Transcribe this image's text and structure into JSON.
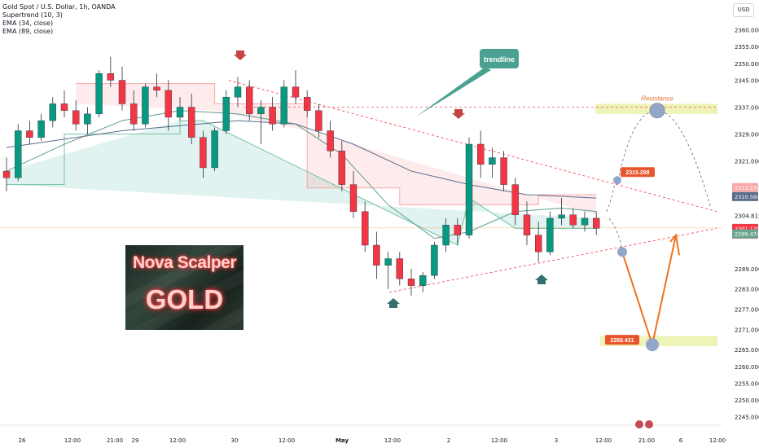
{
  "legend": {
    "symbol_line": "Gold Spot / U.S. Dollar, 1h, OANDA",
    "supertrend": "Supertrend (10, 3)",
    "ema34": "EMA (34, close)",
    "ema89": "EMA (89, close)"
  },
  "currency_button": "USD",
  "logo": {
    "line1": "Nova Scalper",
    "line2": "GOLD"
  },
  "colors": {
    "bull": "#089981",
    "bear": "#f23645",
    "annotation_teal": "#4aa191",
    "projection_orange": "#f0701a",
    "resistance_band": "#eef3b6",
    "marker_circle": "#93a5c8"
  },
  "chart_data": {
    "type": "candlestick",
    "symbol": "Gold Spot / U.S. Dollar",
    "timeframe": "1h",
    "source": "OANDA",
    "ylim": [
      2243,
      2364
    ],
    "y_ticks": [
      2360.0,
      2355.0,
      2350.0,
      2345.0,
      2337.0,
      2329.0,
      2321.0,
      2313.235,
      2304.815,
      2289.0,
      2283.0,
      2277.0,
      2271.0,
      2265.0,
      2260.0,
      2255.0,
      2250.0,
      2245.0
    ],
    "y_tick_labels": [
      "2360.000",
      "2355.000",
      "2350.000",
      "2345.000",
      "2337.000",
      "2329.000",
      "2321.000",
      "2313.235",
      "2304.815",
      "2289.000",
      "2283.000",
      "2277.000",
      "2271.000",
      "2265.000",
      "2260.000",
      "2255.000",
      "2250.000",
      "2245.000"
    ],
    "x_ticks": [
      "26",
      "12:00",
      "21:00",
      "29",
      "12:00",
      "30",
      "12:00",
      "May",
      "12:00",
      "2",
      "12:00",
      "3",
      "12:00",
      "21:00",
      "6",
      "12:00"
    ],
    "price_tags": [
      {
        "label": "2313.235",
        "value": 2313.235,
        "color": "#f7a9a9",
        "text": "#ffffff"
      },
      {
        "label": "2310.560",
        "value": 2310.56,
        "color": "#5b6d8c",
        "text": "#ffffff"
      },
      {
        "label": "2301.120",
        "sub": "25:43",
        "value": 2301.12,
        "color": "#f23645",
        "text": "#ffffff"
      },
      {
        "label": "2299.474",
        "value": 2299.474,
        "color": "#6ba58f",
        "text": "#ffffff"
      }
    ],
    "annotations": [
      {
        "label": "trendline",
        "type": "callout"
      },
      {
        "label": "Resistance",
        "type": "text",
        "value": 2336.0
      },
      {
        "label": "2315.298",
        "type": "price-label",
        "value": 2315.298
      },
      {
        "label": "2266.431",
        "type": "price-label",
        "value": 2266.431
      }
    ],
    "candles": [
      [
        2318.0,
        2322.0,
        2312.0,
        2316.0
      ],
      [
        2316.0,
        2332.0,
        2315.0,
        2330.0
      ],
      [
        2330.0,
        2333.0,
        2326.0,
        2328.0
      ],
      [
        2328.0,
        2335.0,
        2327.0,
        2333.0
      ],
      [
        2333.0,
        2340.0,
        2331.0,
        2338.0
      ],
      [
        2338.0,
        2342.0,
        2334.0,
        2336.0
      ],
      [
        2336.0,
        2339.0,
        2330.0,
        2332.0
      ],
      [
        2332.0,
        2337.0,
        2329.0,
        2335.0
      ],
      [
        2335.0,
        2348.0,
        2334.0,
        2347.0
      ],
      [
        2347.0,
        2352.0,
        2343.0,
        2345.0
      ],
      [
        2345.0,
        2349.0,
        2336.0,
        2338.0
      ],
      [
        2338.0,
        2342.0,
        2330.0,
        2332.0
      ],
      [
        2332.0,
        2344.0,
        2331.0,
        2343.0
      ],
      [
        2343.0,
        2347.0,
        2340.0,
        2342.0
      ],
      [
        2342.0,
        2345.0,
        2330.0,
        2334.0
      ],
      [
        2334.0,
        2340.0,
        2333.0,
        2337.0
      ],
      [
        2337.0,
        2341.0,
        2326.0,
        2328.0
      ],
      [
        2328.0,
        2330.0,
        2316.0,
        2319.0
      ],
      [
        2319.0,
        2331.0,
        2318.0,
        2330.0
      ],
      [
        2330.0,
        2342.0,
        2329.0,
        2340.0
      ],
      [
        2340.0,
        2346.0,
        2337.0,
        2343.0
      ],
      [
        2343.0,
        2345.0,
        2333.0,
        2335.0
      ],
      [
        2335.0,
        2339.0,
        2326.0,
        2337.0
      ],
      [
        2337.0,
        2340.0,
        2330.0,
        2332.0
      ],
      [
        2332.0,
        2345.0,
        2331.0,
        2343.0
      ],
      [
        2343.0,
        2348.0,
        2338.0,
        2340.0
      ],
      [
        2340.0,
        2342.0,
        2334.0,
        2336.0
      ],
      [
        2336.0,
        2338.0,
        2328.0,
        2330.0
      ],
      [
        2330.0,
        2333.0,
        2322.0,
        2324.0
      ],
      [
        2324.0,
        2327.0,
        2312.0,
        2314.0
      ],
      [
        2314.0,
        2318.0,
        2304.0,
        2306.0
      ],
      [
        2306.0,
        2309.0,
        2294.0,
        2296.0
      ],
      [
        2296.0,
        2300.0,
        2286.0,
        2290.0
      ],
      [
        2290.0,
        2294.0,
        2283.0,
        2292.0
      ],
      [
        2292.0,
        2294.0,
        2284.0,
        2286.0
      ],
      [
        2286.0,
        2289.0,
        2281.0,
        2284.0
      ],
      [
        2284.0,
        2288.0,
        2282.0,
        2287.0
      ],
      [
        2287.0,
        2297.0,
        2286.0,
        2296.0
      ],
      [
        2296.0,
        2304.0,
        2294.0,
        2302.0
      ],
      [
        2302.0,
        2304.0,
        2296.0,
        2299.0
      ],
      [
        2299.0,
        2328.0,
        2298.0,
        2326.0
      ],
      [
        2326.0,
        2330.0,
        2316.0,
        2320.0
      ],
      [
        2320.0,
        2325.0,
        2316.0,
        2322.0
      ],
      [
        2322.0,
        2324.0,
        2312.0,
        2314.0
      ],
      [
        2314.0,
        2316.0,
        2302.0,
        2305.0
      ],
      [
        2305.0,
        2309.0,
        2296.0,
        2299.0
      ],
      [
        2299.0,
        2303.0,
        2291.0,
        2294.0
      ],
      [
        2294.0,
        2306.0,
        2293.0,
        2304.0
      ],
      [
        2304.0,
        2310.0,
        2302.0,
        2305.0
      ],
      [
        2305.0,
        2307.0,
        2301.0,
        2302.0
      ],
      [
        2302.0,
        2306.0,
        2300.0,
        2304.0
      ],
      [
        2304.0,
        2306.0,
        2299.0,
        2301.0
      ]
    ],
    "supertrend": {
      "upper": [
        [
          6,
          2344
        ],
        [
          18,
          2344
        ],
        [
          18,
          2338
        ],
        [
          26,
          2338
        ],
        [
          26,
          2313
        ],
        [
          34,
          2313
        ],
        [
          34,
          2308
        ],
        [
          46,
          2308
        ],
        [
          46,
          2311
        ],
        [
          51,
          2311
        ]
      ],
      "lower": [
        [
          0,
          2314
        ],
        [
          5,
          2314
        ],
        [
          5,
          2329
        ],
        [
          15,
          2329
        ],
        [
          15,
          2333
        ],
        [
          17,
          2333
        ],
        [
          39,
          2296
        ],
        [
          40,
          2310
        ],
        [
          44,
          2301
        ],
        [
          46,
          2301
        ],
        [
          51,
          2301
        ]
      ]
    },
    "ema34": [
      [
        0,
        2318
      ],
      [
        5,
        2326
      ],
      [
        10,
        2333
      ],
      [
        15,
        2336
      ],
      [
        20,
        2335
      ],
      [
        25,
        2332
      ],
      [
        29,
        2323
      ],
      [
        33,
        2308
      ],
      [
        37,
        2298
      ],
      [
        40,
        2300
      ],
      [
        44,
        2306
      ],
      [
        48,
        2307
      ],
      [
        51,
        2306
      ]
    ],
    "ema89": [
      [
        0,
        2325
      ],
      [
        10,
        2330
      ],
      [
        20,
        2333
      ],
      [
        25,
        2332
      ],
      [
        30,
        2326
      ],
      [
        35,
        2318
      ],
      [
        40,
        2314
      ],
      [
        45,
        2311
      ],
      [
        51,
        2310
      ]
    ],
    "projection": {
      "dashed_up": [
        [
          2315.298
        ],
        [
          2337.0
        ],
        [
          2306.0
        ]
      ],
      "orange_path": [
        2294.0,
        2266.431,
        2299.0
      ]
    }
  }
}
